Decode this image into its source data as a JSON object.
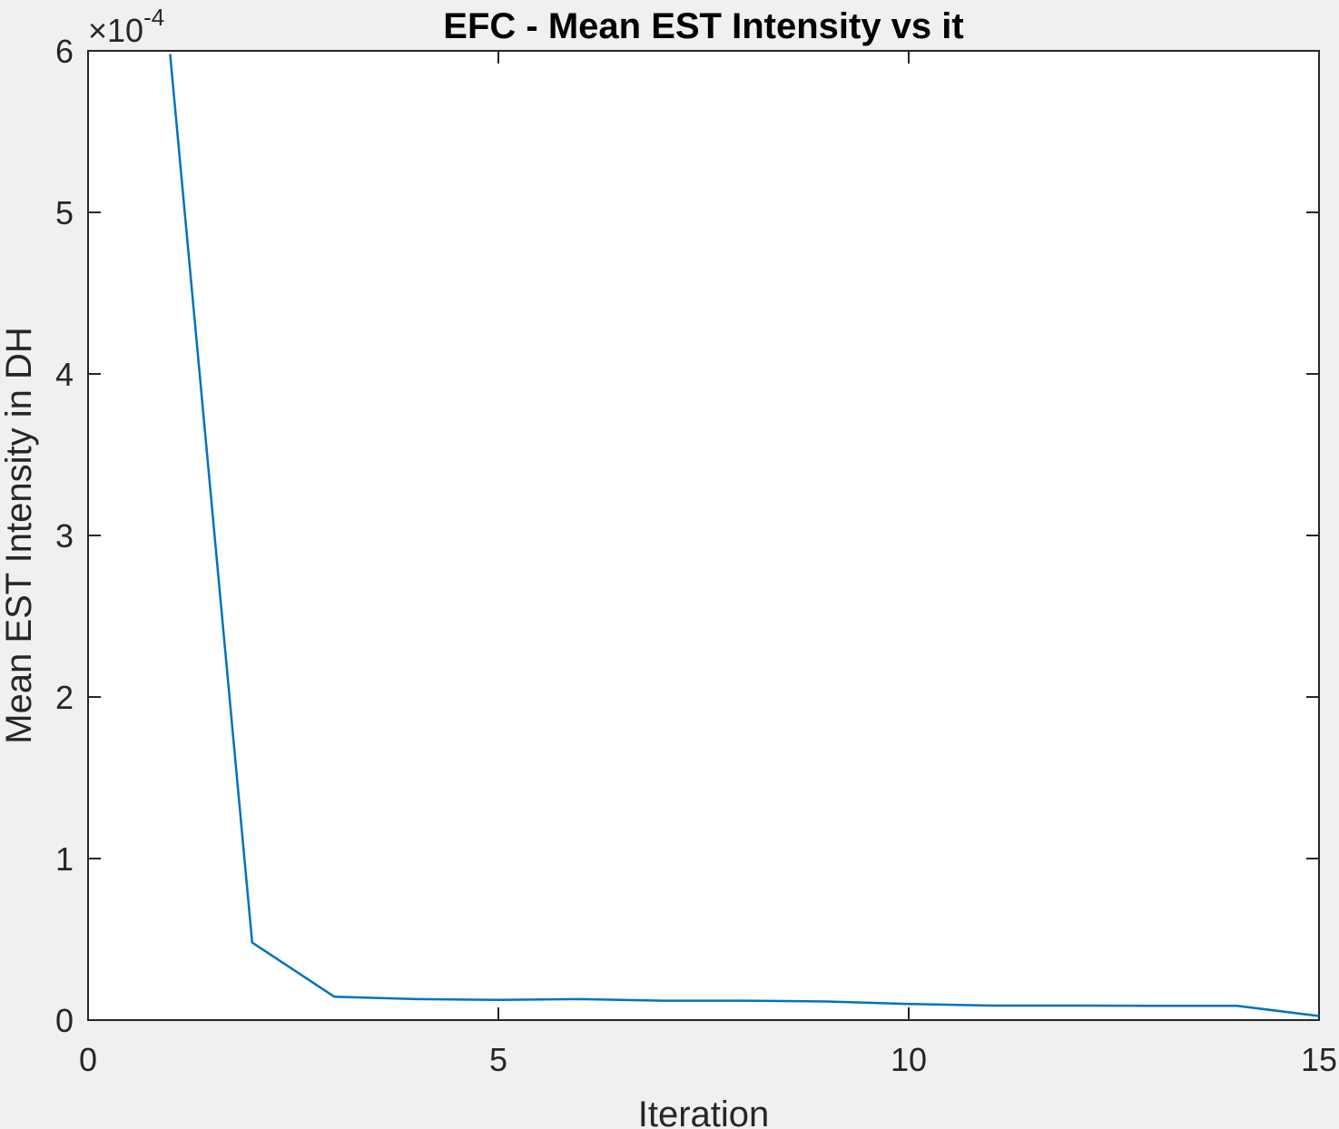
{
  "chart_data": {
    "type": "line",
    "title": "EFC - Mean EST Intensity vs it",
    "xlabel": "Iteration",
    "ylabel": "Mean EST Intensity in DH",
    "xlim": [
      0,
      15
    ],
    "ylim": [
      0,
      6
    ],
    "xticks": [
      0,
      5,
      10,
      15
    ],
    "yticks": [
      0,
      1,
      2,
      3,
      4,
      5,
      6
    ],
    "y_multiplier_base": "×10",
    "y_multiplier_exponent": "-4",
    "grid": false,
    "series": [
      {
        "color": "#0072bd",
        "x": [
          1,
          2,
          3,
          4,
          5,
          6,
          7,
          8,
          9,
          10,
          11,
          12,
          13,
          14,
          15
        ],
        "y": [
          5.98,
          0.48,
          0.145,
          0.13,
          0.125,
          0.13,
          0.12,
          0.12,
          0.115,
          0.1,
          0.09,
          0.09,
          0.088,
          0.088,
          0.025
        ]
      }
    ]
  }
}
